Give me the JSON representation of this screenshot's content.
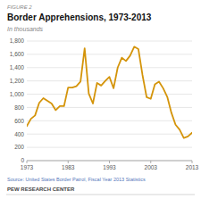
{
  "chart_data": {
    "type": "line",
    "title": "Border Apprehensions, 1973-2013",
    "subtitle": "In thousands",
    "annotations": [
      "FIGURE 2",
      "Source: United States Border Patrol, Fiscal Year 2013 Statistics",
      "PEW RESEARCH CENTER"
    ],
    "color": "#D4940A",
    "grid": true,
    "x": [
      1973,
      1974,
      1975,
      1976,
      1977,
      1978,
      1979,
      1980,
      1981,
      1982,
      1983,
      1984,
      1985,
      1986,
      1987,
      1988,
      1989,
      1990,
      1991,
      1992,
      1993,
      1994,
      1995,
      1996,
      1997,
      1998,
      1999,
      2000,
      2001,
      2002,
      2003,
      2004,
      2005,
      2006,
      2007,
      2008,
      2009,
      2010,
      2011,
      2012,
      2013
    ],
    "values": [
      520,
      630,
      680,
      870,
      940,
      900,
      860,
      760,
      820,
      820,
      1100,
      1100,
      1120,
      1190,
      1690,
      1010,
      860,
      1170,
      1130,
      1200,
      1260,
      1090,
      1400,
      1550,
      1500,
      1580,
      1715,
      1680,
      1290,
      955,
      930,
      1150,
      1190,
      1090,
      960,
      720,
      540,
      465,
      340,
      365,
      420
    ],
    "xlim": [
      1973,
      2013
    ],
    "xticks": [
      1973,
      1983,
      1993,
      2003,
      2013
    ],
    "ylim": [
      0,
      1800
    ],
    "yticks": [
      0,
      200,
      400,
      600,
      800,
      {
        "value": 1000,
        "label": "1,000"
      },
      {
        "value": 1200,
        "label": "1,200"
      },
      {
        "value": 1400,
        "label": "1,400"
      },
      {
        "value": 1600,
        "label": "1,600"
      },
      {
        "value": 1800,
        "label": "1,800"
      }
    ]
  }
}
